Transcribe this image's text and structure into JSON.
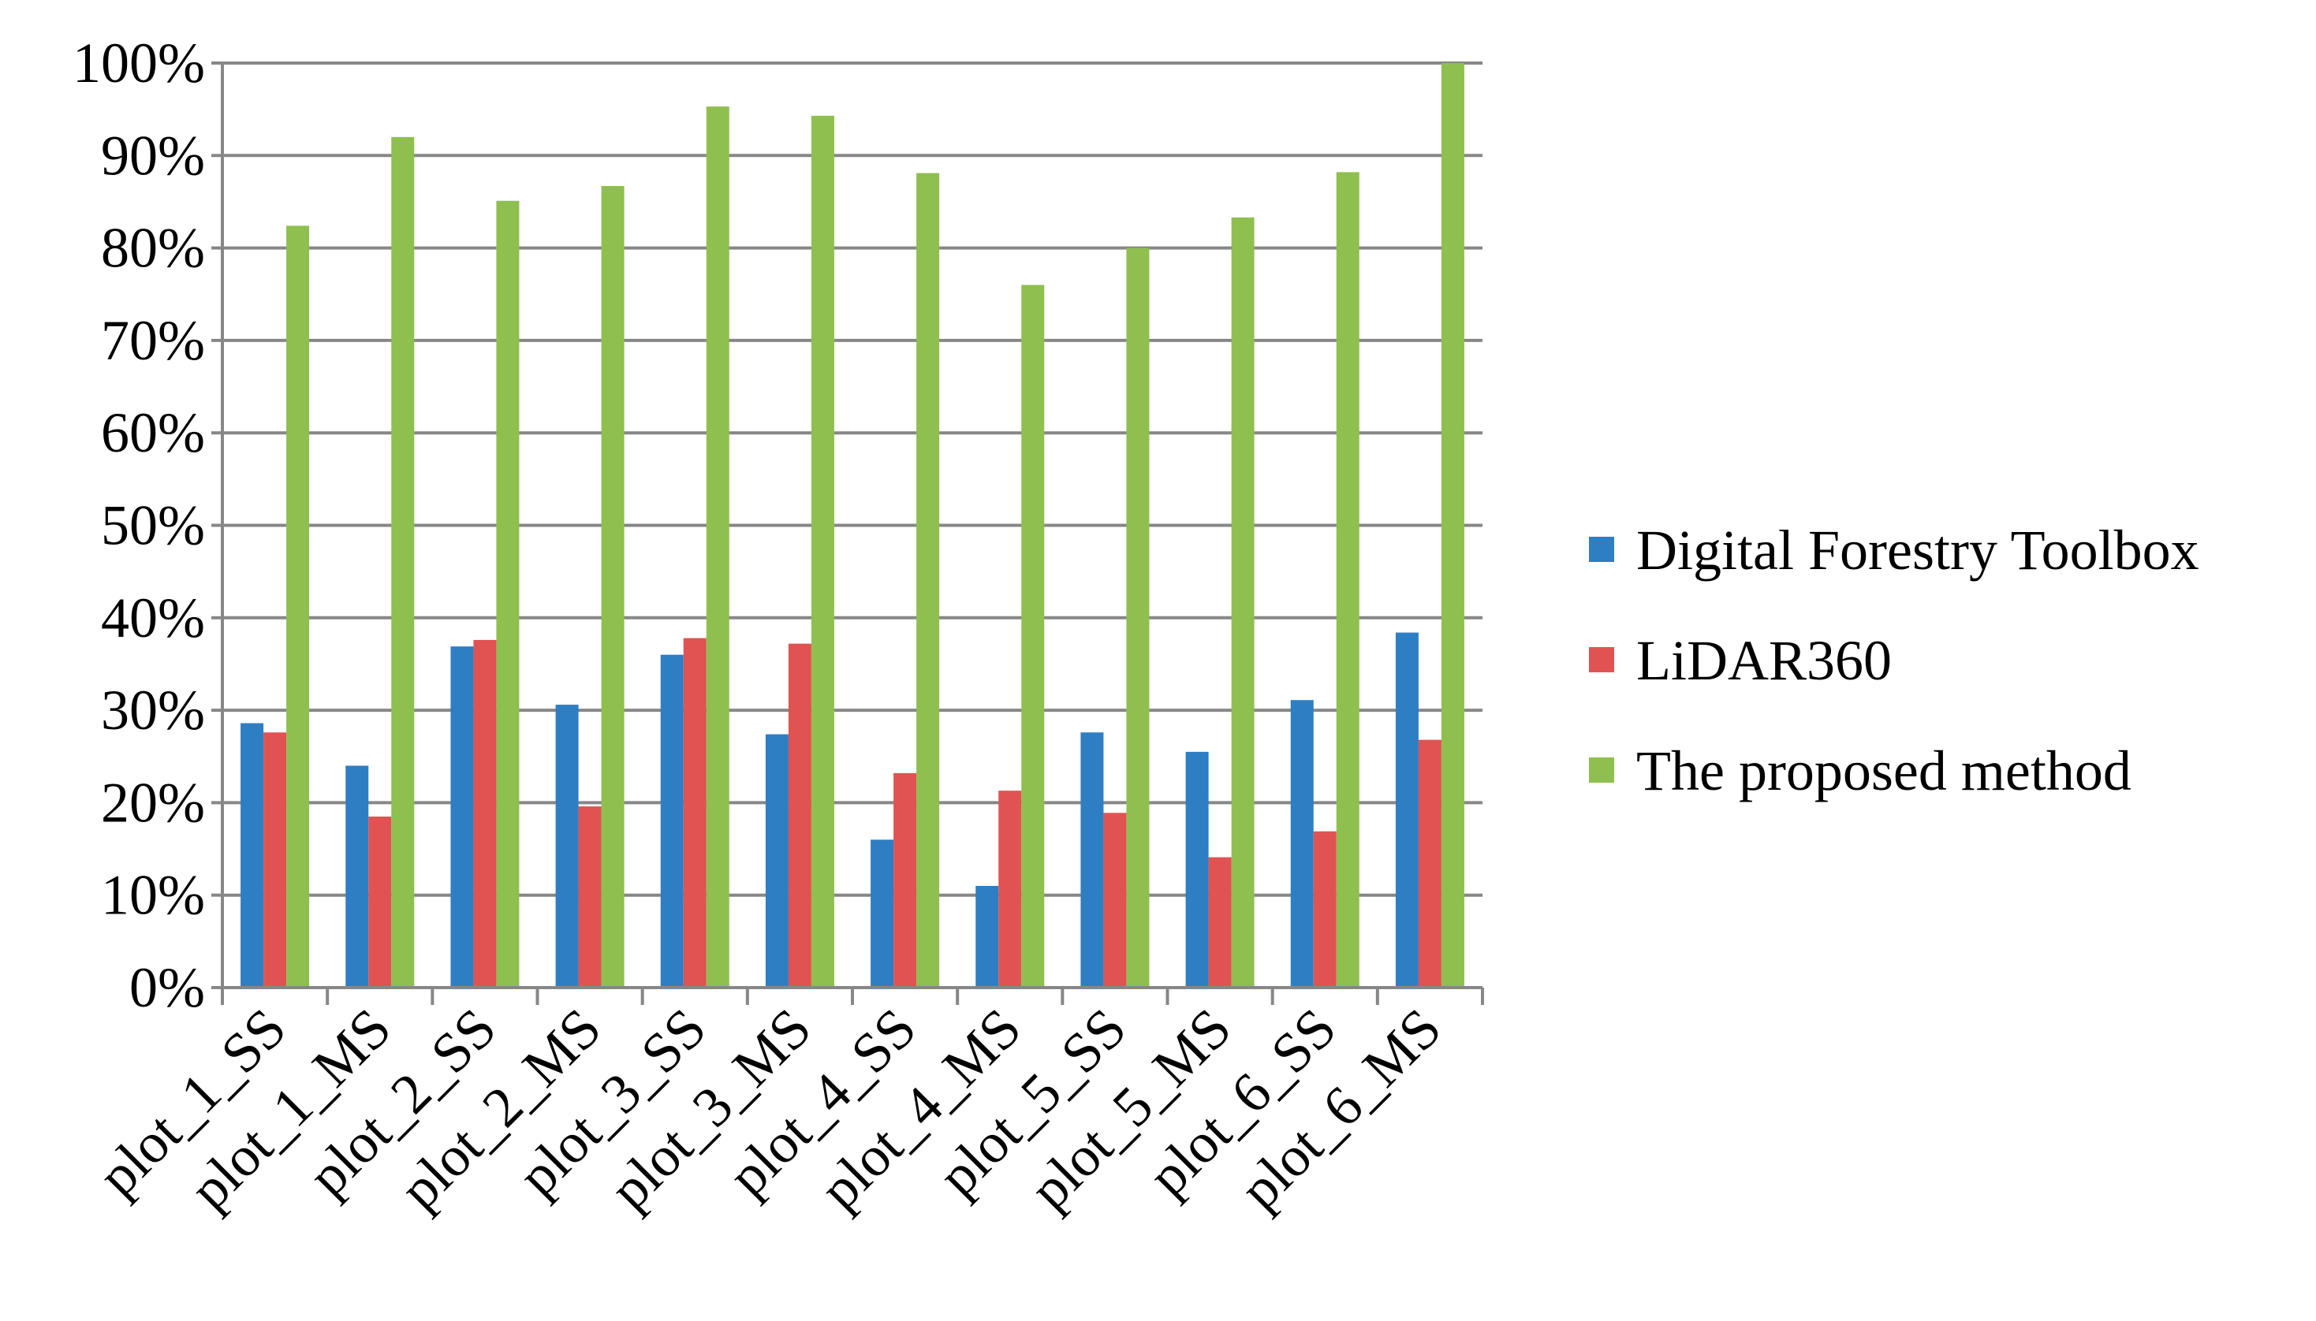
{
  "chart_data": {
    "type": "bar",
    "categories": [
      "plot_1_SS",
      "plot_1_MS",
      "plot_2_SS",
      "plot_2_MS",
      "plot_3_SS",
      "plot_3_MS",
      "plot_4_SS",
      "plot_4_MS",
      "plot_5_SS",
      "plot_5_MS",
      "plot_6_SS",
      "plot_6_MS"
    ],
    "series": [
      {
        "name": "Digital Forestry Toolbox",
        "color": "#2e7ec4",
        "values": [
          28.6,
          24.0,
          36.9,
          30.6,
          36.0,
          27.4,
          16.0,
          11.0,
          27.6,
          25.5,
          31.1,
          38.4
        ]
      },
      {
        "name": "LiDAR360",
        "color": "#e05352",
        "values": [
          27.6,
          18.5,
          37.6,
          19.6,
          37.8,
          37.2,
          23.2,
          21.3,
          18.9,
          14.1,
          16.9,
          26.8
        ]
      },
      {
        "name": "The proposed method",
        "color": "#8fbf4f",
        "values": [
          82.4,
          92.0,
          85.1,
          86.7,
          95.3,
          94.3,
          88.1,
          76.0,
          80.0,
          83.3,
          88.2,
          100.0
        ]
      }
    ],
    "yticks": [
      "0%",
      "10%",
      "20%",
      "30%",
      "40%",
      "50%",
      "60%",
      "70%",
      "80%",
      "90%",
      "100%"
    ],
    "ylim": [
      0,
      100
    ],
    "title": "",
    "xlabel": "",
    "ylabel": "",
    "grid": true,
    "legend_position": "right"
  }
}
